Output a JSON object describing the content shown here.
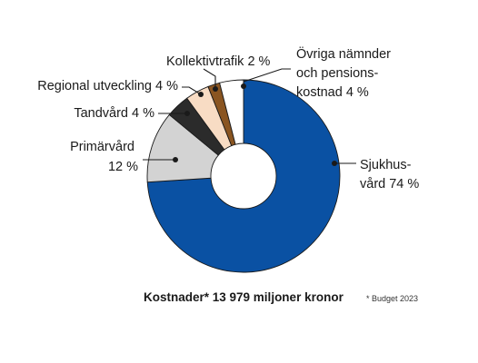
{
  "chart_data": {
    "type": "pie",
    "style": "donut",
    "unit": "%",
    "slices": [
      {
        "key": "sjukhusvard",
        "lines": [
          "Sjukhus-",
          "vård 74 %"
        ],
        "value": 74,
        "color": "#0a51a3"
      },
      {
        "key": "primarvard",
        "lines": [
          "Primärvård",
          "12 %"
        ],
        "value": 12,
        "color": "#d3d3d3"
      },
      {
        "key": "tandvard",
        "lines": [
          "Tandvård 4 %"
        ],
        "value": 4,
        "color": "#2b2b2b"
      },
      {
        "key": "regional",
        "lines": [
          "Regional utveckling 4 %"
        ],
        "value": 4,
        "color": "#f8dcc4"
      },
      {
        "key": "kollektivtrafik",
        "lines": [
          "Kollektivtrafik 2 %"
        ],
        "value": 2,
        "color": "#8a5521"
      },
      {
        "key": "ovriga",
        "lines": [
          "Övriga nämnder",
          "och pensions-",
          "kostnad 4 %"
        ],
        "value": 4,
        "color": "#ffffff"
      }
    ],
    "caption": "Kostnader* 13 979 miljoner kronor",
    "footnote": "* Budget 2023"
  }
}
